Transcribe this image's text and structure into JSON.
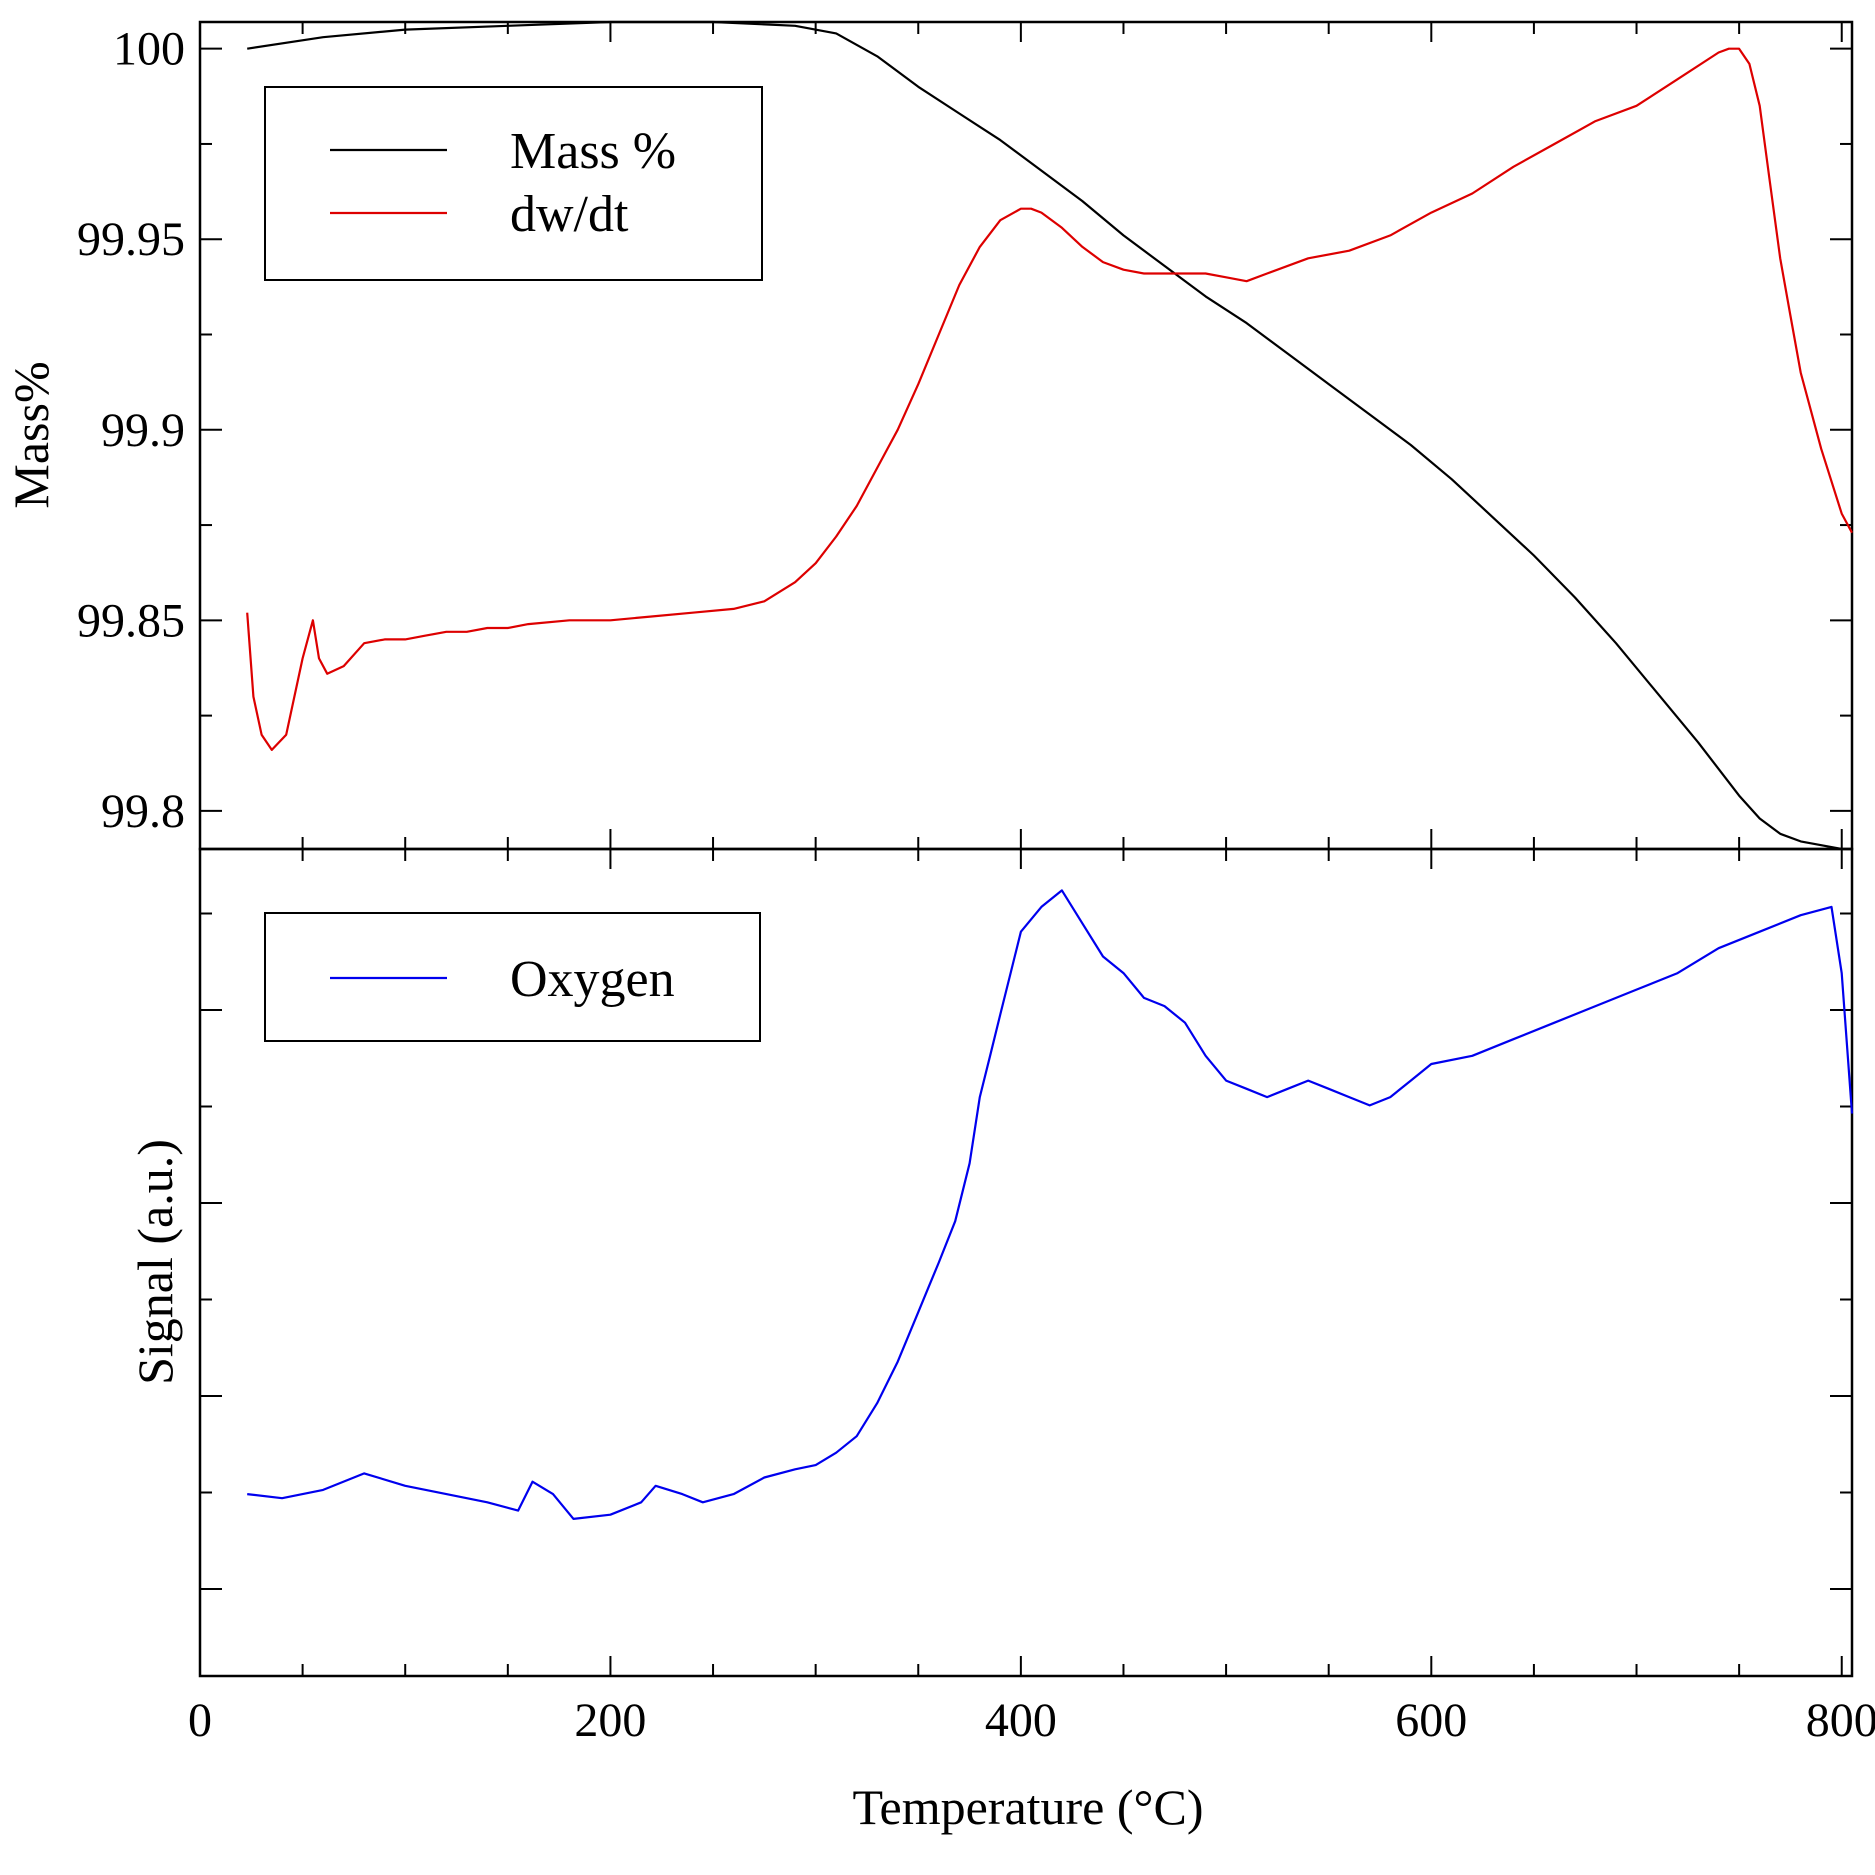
{
  "chart_data": [
    {
      "type": "line",
      "panel": "top",
      "xlabel": "",
      "ylabel": "Mass%",
      "xlim": [
        0,
        805
      ],
      "ylim": [
        99.79,
        100.007
      ],
      "yticks": [
        99.8,
        99.85,
        99.9,
        99.95,
        100
      ],
      "ytick_labels": [
        "99.8",
        "99.85",
        "99.9",
        "99.95",
        "100"
      ],
      "legend_position": "top-left",
      "series": [
        {
          "name": "Mass %",
          "color": "#000000",
          "x": [
            23,
            60,
            100,
            150,
            200,
            250,
            290,
            310,
            330,
            350,
            370,
            390,
            410,
            430,
            450,
            470,
            490,
            510,
            530,
            550,
            570,
            590,
            610,
            630,
            650,
            670,
            690,
            710,
            730,
            750,
            760,
            770,
            780,
            790,
            800,
            805
          ],
          "y": [
            100.0,
            100.003,
            100.005,
            100.006,
            100.007,
            100.007,
            100.006,
            100.004,
            99.998,
            99.99,
            99.983,
            99.976,
            99.968,
            99.96,
            99.951,
            99.943,
            99.935,
            99.928,
            99.92,
            99.912,
            99.904,
            99.896,
            99.887,
            99.877,
            99.867,
            99.856,
            99.844,
            99.831,
            99.818,
            99.804,
            99.798,
            99.794,
            99.792,
            99.791,
            99.79,
            99.79
          ]
        },
        {
          "name": "dw/dt",
          "color": "#dd0000",
          "x": [
            23,
            26,
            30,
            35,
            42,
            50,
            55,
            58,
            62,
            70,
            80,
            90,
            100,
            110,
            120,
            130,
            140,
            150,
            160,
            180,
            200,
            220,
            240,
            260,
            275,
            290,
            300,
            310,
            320,
            330,
            340,
            350,
            360,
            370,
            380,
            390,
            400,
            405,
            410,
            420,
            430,
            440,
            450,
            460,
            470,
            480,
            490,
            500,
            510,
            520,
            540,
            560,
            580,
            600,
            620,
            640,
            660,
            680,
            700,
            720,
            740,
            745,
            750,
            755,
            760,
            765,
            770,
            775,
            780,
            790,
            800,
            805
          ],
          "y": [
            99.852,
            99.83,
            99.82,
            99.816,
            99.82,
            99.84,
            99.85,
            99.84,
            99.836,
            99.838,
            99.844,
            99.845,
            99.845,
            99.846,
            99.847,
            99.847,
            99.848,
            99.848,
            99.849,
            99.85,
            99.85,
            99.851,
            99.852,
            99.853,
            99.855,
            99.86,
            99.865,
            99.872,
            99.88,
            99.89,
            99.9,
            99.912,
            99.925,
            99.938,
            99.948,
            99.955,
            99.958,
            99.958,
            99.957,
            99.953,
            99.948,
            99.944,
            99.942,
            99.941,
            99.941,
            99.941,
            99.941,
            99.94,
            99.939,
            99.941,
            99.945,
            99.947,
            99.951,
            99.957,
            99.962,
            99.969,
            99.975,
            99.981,
            99.985,
            99.992,
            99.999,
            100.0,
            100.0,
            99.996,
            99.985,
            99.965,
            99.945,
            99.93,
            99.915,
            99.895,
            99.878,
            99.873
          ]
        }
      ]
    },
    {
      "type": "line",
      "panel": "bottom",
      "xlabel": "Temperature (°C)",
      "ylabel": "Signal (a.u.)",
      "xlim": [
        0,
        805
      ],
      "xticks": [
        0,
        200,
        400,
        600,
        800
      ],
      "xtick_labels": [
        "0",
        "200",
        "400",
        "600",
        "800"
      ],
      "ylim": [
        0,
        1
      ],
      "legend_position": "top-left",
      "series": [
        {
          "name": "Oxygen",
          "color": "#0000ee",
          "x": [
            23,
            40,
            60,
            80,
            100,
            120,
            140,
            155,
            162,
            172,
            182,
            200,
            215,
            222,
            235,
            245,
            260,
            275,
            290,
            300,
            310,
            320,
            330,
            340,
            350,
            355,
            360,
            368,
            375,
            380,
            385,
            390,
            395,
            400,
            410,
            420,
            430,
            440,
            450,
            460,
            470,
            480,
            490,
            500,
            510,
            520,
            530,
            540,
            550,
            560,
            570,
            580,
            590,
            600,
            620,
            640,
            660,
            680,
            700,
            720,
            740,
            760,
            780,
            795,
            800,
            805
          ],
          "y": [
            0.22,
            0.215,
            0.225,
            0.245,
            0.23,
            0.22,
            0.21,
            0.2,
            0.235,
            0.22,
            0.19,
            0.195,
            0.21,
            0.23,
            0.22,
            0.21,
            0.22,
            0.24,
            0.25,
            0.255,
            0.27,
            0.29,
            0.33,
            0.38,
            0.44,
            0.47,
            0.5,
            0.55,
            0.62,
            0.7,
            0.75,
            0.8,
            0.85,
            0.9,
            0.93,
            0.95,
            0.91,
            0.87,
            0.85,
            0.82,
            0.81,
            0.79,
            0.75,
            0.72,
            0.71,
            0.7,
            0.71,
            0.72,
            0.71,
            0.7,
            0.69,
            0.7,
            0.72,
            0.74,
            0.75,
            0.77,
            0.79,
            0.81,
            0.83,
            0.85,
            0.88,
            0.9,
            0.92,
            0.93,
            0.85,
            0.68
          ]
        }
      ]
    }
  ]
}
